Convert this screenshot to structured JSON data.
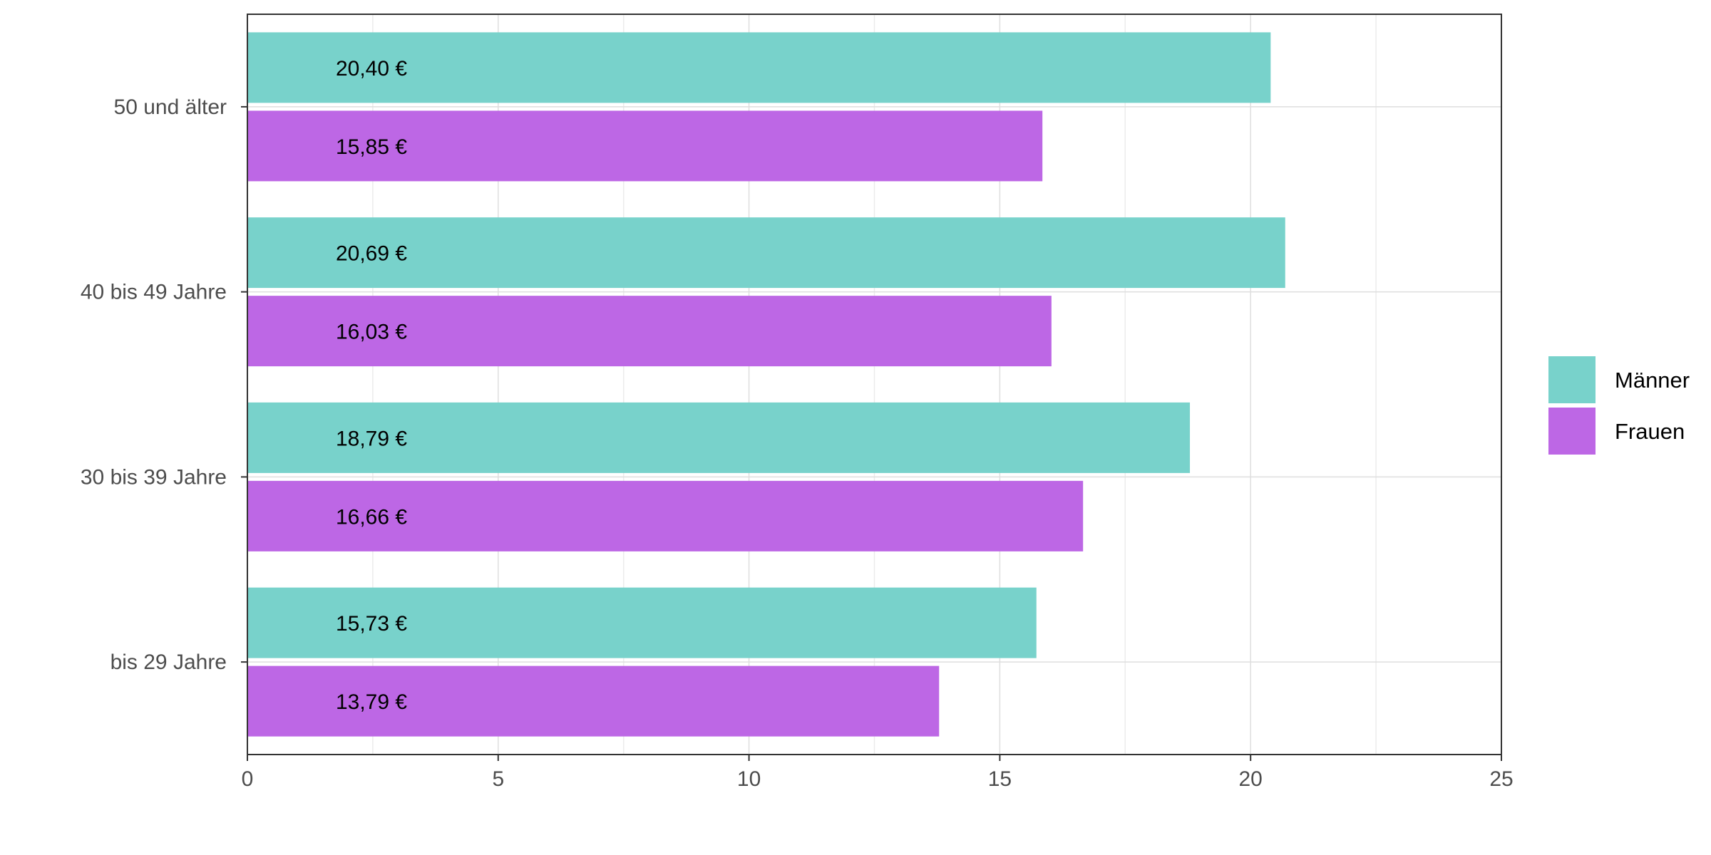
{
  "chart_data": {
    "type": "bar",
    "orientation": "horizontal",
    "title": "",
    "xlabel": "",
    "ylabel": "",
    "categories": [
      "50 und älter",
      "40 bis 49 Jahre",
      "30 bis 39 Jahre",
      "bis 29 Jahre"
    ],
    "series": [
      {
        "name": "Männer",
        "color": "#78d2cb",
        "values": [
          20.4,
          20.69,
          18.79,
          15.73
        ],
        "labels": [
          "20,40 €",
          "20,69 €",
          "18,79 €",
          "15,73 €"
        ]
      },
      {
        "name": "Frauen",
        "color": "#bd67e5",
        "values": [
          15.85,
          16.03,
          16.66,
          13.79
        ],
        "labels": [
          "15,85 €",
          "16,03 €",
          "16,66 €",
          "13,79 €"
        ]
      }
    ],
    "xlim": [
      0,
      25
    ],
    "xticks": [
      0,
      5,
      10,
      15,
      20,
      25
    ],
    "xtick_labels": [
      "0",
      "5",
      "10",
      "15",
      "20",
      "25"
    ],
    "grid": true,
    "legend_position": "right"
  }
}
